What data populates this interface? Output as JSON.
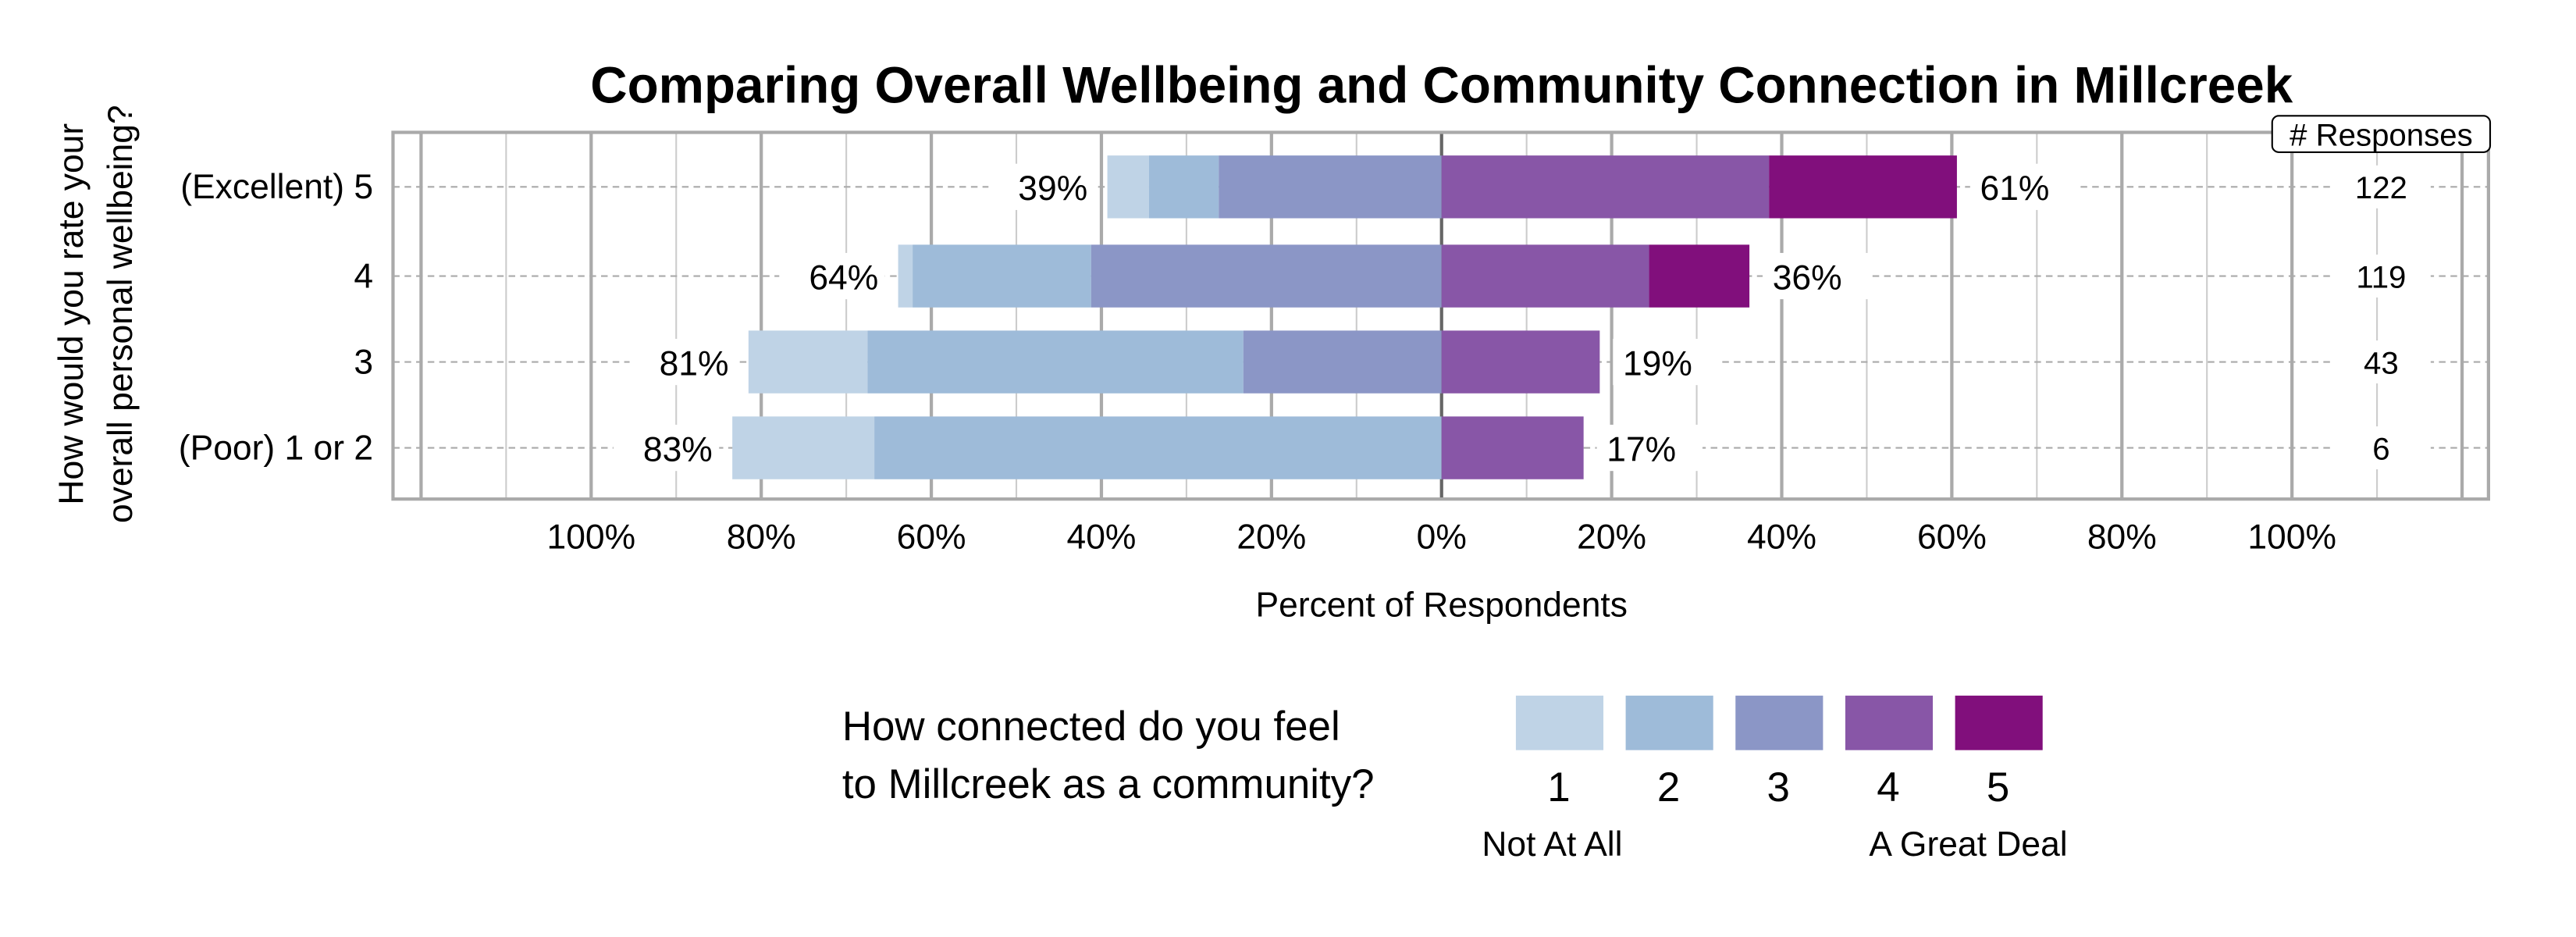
{
  "chart_data": {
    "type": "bar",
    "subtype": "diverging-stacked-horizontal",
    "title": "Comparing Overall Wellbeing and Community Connection in Millcreek",
    "xlabel": "Percent of Respondents",
    "ylabel": [
      "How would you rate your",
      "overall personal wellbeing?"
    ],
    "xlim": [
      -100,
      100
    ],
    "xticks": [
      -100,
      -80,
      -60,
      -40,
      -20,
      0,
      20,
      40,
      60,
      80,
      100
    ],
    "xtick_labels": [
      "100%",
      "80%",
      "60%",
      "40%",
      "20%",
      "0%",
      "20%",
      "40%",
      "60%",
      "80%",
      "100%"
    ],
    "grid": true,
    "categories": [
      "(Excellent) 5",
      "4",
      "3",
      "(Poor) 1 or 2"
    ],
    "series": [
      {
        "name": "1",
        "values": [
          4.9,
          1.7,
          14.0,
          16.7
        ]
      },
      {
        "name": "2",
        "values": [
          8.2,
          21.0,
          44.2,
          66.7
        ]
      },
      {
        "name": "3",
        "values": [
          26.2,
          41.2,
          23.3,
          0
        ]
      },
      {
        "name": "4",
        "values": [
          38.5,
          24.4,
          18.6,
          16.7
        ]
      },
      {
        "name": "5",
        "values": [
          22.1,
          11.8,
          0,
          0
        ]
      }
    ],
    "negative_series": [
      "1",
      "2",
      "3"
    ],
    "left_totals": [
      "39%",
      "64%",
      "81%",
      "83%"
    ],
    "right_totals": [
      "61%",
      "36%",
      "19%",
      "17%"
    ],
    "responses_header": "# Responses",
    "responses": [
      "122",
      "119",
      "43",
      "6"
    ],
    "legend": {
      "title": [
        "How connected do you feel",
        "to Millcreek as a community?"
      ],
      "labels": [
        "1",
        "2",
        "3",
        "4",
        "5"
      ],
      "low_label": "Not At All",
      "high_label": "A Great Deal",
      "placement": "bottom"
    },
    "colors": [
      "#bfd3e6",
      "#9ebbd9",
      "#8b96c6",
      "#8856a7",
      "#810f7c"
    ]
  }
}
